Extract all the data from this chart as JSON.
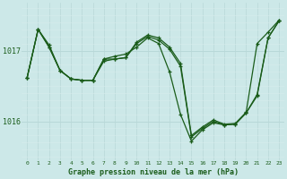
{
  "title": "Graphe pression niveau de la mer (hPa)",
  "bg_color": "#cce8e8",
  "line_color": "#1a5c1a",
  "grid_color_v": "#b8d8d8",
  "grid_color_h": "#d8ecec",
  "x_values": [
    0,
    1,
    2,
    3,
    4,
    5,
    6,
    7,
    8,
    9,
    10,
    11,
    12,
    13,
    14,
    15,
    16,
    17,
    18,
    19,
    20,
    21,
    22,
    23
  ],
  "line1": [
    1016.62,
    1017.3,
    1017.08,
    1016.72,
    1016.6,
    1016.58,
    1016.58,
    1016.88,
    1016.92,
    1016.95,
    1017.05,
    1017.18,
    1017.1,
    1016.7,
    1016.1,
    1015.72,
    1015.88,
    1015.98,
    1015.95,
    1015.96,
    1016.12,
    1016.38,
    1017.18,
    1017.42
  ],
  "line2": [
    1016.62,
    1017.3,
    1017.05,
    1016.72,
    1016.6,
    1016.58,
    1016.58,
    1016.88,
    1016.88,
    1016.9,
    1017.12,
    1017.22,
    1017.18,
    1017.05,
    1016.82,
    1015.8,
    1015.92,
    1016.02,
    1015.96,
    1015.97,
    1016.13,
    1017.1,
    1017.26,
    1017.43
  ],
  "line3": [
    1016.62,
    1017.3,
    1017.05,
    1016.72,
    1016.6,
    1016.58,
    1016.58,
    1016.85,
    1016.88,
    1016.9,
    1017.1,
    1017.2,
    1017.15,
    1017.02,
    1016.78,
    1015.78,
    1015.9,
    1016.0,
    1015.95,
    1015.96,
    1016.12,
    1016.36,
    1017.18,
    1017.42
  ],
  "ytick_vals": [
    1016.0,
    1017.0
  ],
  "ytick_labels": [
    "1016",
    "1017"
  ],
  "ylim": [
    1015.45,
    1017.68
  ],
  "xlim": [
    -0.5,
    23.5
  ]
}
